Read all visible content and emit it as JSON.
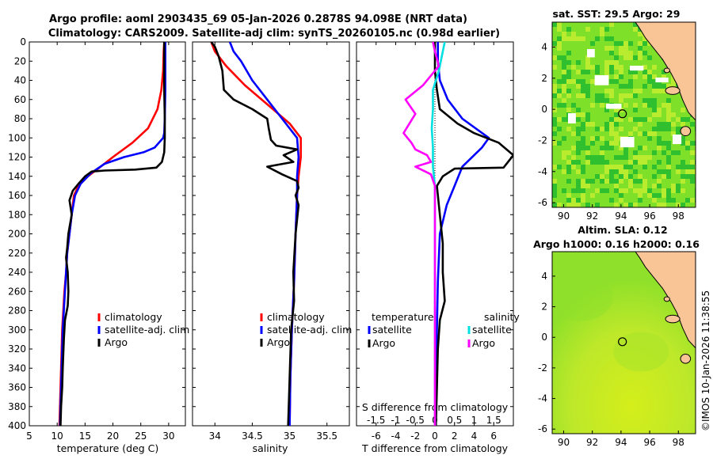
{
  "figure": {
    "title_line1": "Argo profile: aoml 2903435_69 05-Jan-2026 0.2878S 94.098E (NRT data)",
    "title_line2": "Climatology: CARS2009. Satellite-adj clim: synTS_20260105.nc (0.98d earlier)",
    "credit": "©IMOS 10-Jan-2026 11:38:55"
  },
  "colors": {
    "climatology": "#ff0000",
    "satellite": "#0000ff",
    "argo": "#000000",
    "t_diff_satellite": "#0000ff",
    "t_diff_argo": "#000000",
    "s_diff_satellite": "#00e0e0",
    "s_diff_argo": "#ff00ff",
    "land": "#f9c597",
    "sst_dark": "#2fbf2f",
    "sst_mid": "#7fe02a",
    "sst_light": "#b9ec2e",
    "sla_green": "#8fe02a",
    "sla_yellow": "#d4ee1a"
  },
  "chart_data": [
    {
      "id": "temperature",
      "type": "line",
      "xlabel": "temperature (deg C)",
      "xlim": [
        5,
        33
      ],
      "xticks": [
        5,
        10,
        15,
        20,
        25,
        30
      ],
      "ylim": [
        0,
        400
      ],
      "yticks": [
        0,
        20,
        40,
        60,
        80,
        100,
        120,
        140,
        160,
        180,
        200,
        220,
        240,
        260,
        280,
        300,
        320,
        340,
        360,
        380,
        400
      ],
      "legend": [
        "climatology",
        "satellite-adj. clim",
        "Argo"
      ],
      "series": [
        {
          "name": "climatology",
          "color_key": "climatology",
          "points": [
            [
              29.2,
              0
            ],
            [
              29.1,
              10
            ],
            [
              29.0,
              30
            ],
            [
              28.7,
              50
            ],
            [
              28.0,
              70
            ],
            [
              26.3,
              90
            ],
            [
              23.5,
              105
            ],
            [
              20.0,
              120
            ],
            [
              17.8,
              130
            ],
            [
              15.5,
              140
            ],
            [
              13.8,
              150
            ],
            [
              13.0,
              160
            ],
            [
              12.6,
              180
            ],
            [
              12.2,
              200
            ],
            [
              11.8,
              220
            ],
            [
              11.6,
              240
            ],
            [
              11.3,
              260
            ],
            [
              11.1,
              280
            ],
            [
              10.9,
              300
            ],
            [
              10.8,
              320
            ],
            [
              10.7,
              340
            ],
            [
              10.6,
              360
            ],
            [
              10.5,
              380
            ],
            [
              10.4,
              400
            ]
          ]
        },
        {
          "name": "satellite-adj. clim",
          "color_key": "satellite",
          "points": [
            [
              29.4,
              0
            ],
            [
              29.4,
              20
            ],
            [
              29.4,
              50
            ],
            [
              29.3,
              80
            ],
            [
              29.2,
              95
            ],
            [
              29.0,
              100
            ],
            [
              27.5,
              110
            ],
            [
              25.5,
              115
            ],
            [
              22.0,
              120
            ],
            [
              18.5,
              127
            ],
            [
              16.0,
              137
            ],
            [
              14.2,
              148
            ],
            [
              13.2,
              160
            ],
            [
              12.6,
              180
            ],
            [
              12.2,
              200
            ],
            [
              11.8,
              220
            ],
            [
              11.6,
              240
            ],
            [
              11.4,
              260
            ],
            [
              11.2,
              280
            ],
            [
              11.0,
              300
            ],
            [
              10.9,
              320
            ],
            [
              10.8,
              340
            ],
            [
              10.7,
              360
            ],
            [
              10.6,
              380
            ],
            [
              10.5,
              400
            ]
          ]
        },
        {
          "name": "Argo",
          "color_key": "argo",
          "points": [
            [
              29.2,
              0
            ],
            [
              29.2,
              20
            ],
            [
              29.2,
              50
            ],
            [
              29.3,
              80
            ],
            [
              29.3,
              100
            ],
            [
              29.2,
              115
            ],
            [
              28.8,
              125
            ],
            [
              27.8,
              131
            ],
            [
              24.0,
              133
            ],
            [
              18.5,
              134
            ],
            [
              16.2,
              135
            ],
            [
              15.0,
              140
            ],
            [
              13.8,
              148
            ],
            [
              12.8,
              155
            ],
            [
              12.2,
              165
            ],
            [
              12.6,
              180
            ],
            [
              12.0,
              200
            ],
            [
              11.8,
              215
            ],
            [
              11.6,
              225
            ],
            [
              11.9,
              240
            ],
            [
              12.0,
              260
            ],
            [
              11.9,
              275
            ],
            [
              11.4,
              290
            ],
            [
              11.2,
              310
            ],
            [
              11.0,
              340
            ],
            [
              10.9,
              360
            ],
            [
              10.7,
              380
            ],
            [
              10.6,
              400
            ]
          ]
        }
      ]
    },
    {
      "id": "salinity",
      "type": "line",
      "xlabel": "salinity",
      "xlim": [
        33.7,
        35.8
      ],
      "xticks": [
        34,
        34.5,
        35,
        35.5
      ],
      "xticklabels": [
        "34",
        "34.5",
        "35",
        "35.5"
      ],
      "ylim": [
        0,
        400
      ],
      "legend": [
        "climatology",
        "satellite-adj. clim",
        "Argo"
      ],
      "series": [
        {
          "name": "climatology",
          "color_key": "climatology",
          "points": [
            [
              33.95,
              0
            ],
            [
              34.0,
              10
            ],
            [
              34.15,
              25
            ],
            [
              34.4,
              45
            ],
            [
              34.7,
              65
            ],
            [
              35.0,
              85
            ],
            [
              35.15,
              100
            ],
            [
              35.15,
              120
            ],
            [
              35.12,
              140
            ],
            [
              35.1,
              160
            ],
            [
              35.08,
              200
            ],
            [
              35.06,
              250
            ],
            [
              35.03,
              300
            ],
            [
              35.01,
              350
            ],
            [
              35.0,
              400
            ]
          ]
        },
        {
          "name": "satellite-adj. clim",
          "color_key": "satellite",
          "points": [
            [
              34.2,
              0
            ],
            [
              34.25,
              10
            ],
            [
              34.35,
              20
            ],
            [
              34.5,
              40
            ],
            [
              34.7,
              60
            ],
            [
              34.9,
              80
            ],
            [
              35.1,
              100
            ],
            [
              35.12,
              120
            ],
            [
              35.1,
              140
            ],
            [
              35.1,
              160
            ],
            [
              35.08,
              200
            ],
            [
              35.06,
              250
            ],
            [
              35.03,
              300
            ],
            [
              35.01,
              350
            ],
            [
              35.0,
              400
            ]
          ]
        },
        {
          "name": "Argo",
          "color_key": "argo",
          "points": [
            [
              33.95,
              0
            ],
            [
              34.0,
              5
            ],
            [
              34.05,
              15
            ],
            [
              34.1,
              30
            ],
            [
              34.12,
              50
            ],
            [
              34.25,
              60
            ],
            [
              34.5,
              70
            ],
            [
              34.7,
              80
            ],
            [
              34.72,
              90
            ],
            [
              34.75,
              102
            ],
            [
              34.82,
              108
            ],
            [
              35.1,
              112
            ],
            [
              34.92,
              118
            ],
            [
              35.05,
              125
            ],
            [
              34.7,
              130
            ],
            [
              34.9,
              138
            ],
            [
              35.1,
              145
            ],
            [
              35.12,
              152
            ],
            [
              35.08,
              160
            ],
            [
              35.12,
              170
            ],
            [
              35.08,
              200
            ],
            [
              35.05,
              240
            ],
            [
              35.06,
              270
            ],
            [
              35.02,
              300
            ],
            [
              35.0,
              350
            ],
            [
              34.98,
              400
            ]
          ]
        }
      ]
    },
    {
      "id": "differences",
      "type": "line",
      "xlabel": "T difference from climatology",
      "xlim": [
        -8,
        8
      ],
      "xticks": [
        -6,
        -4,
        -2,
        0,
        2,
        4,
        6
      ],
      "top_label": "S difference from climatology",
      "top_xlim": [
        -2,
        2
      ],
      "top_ticks": [
        -1.5,
        -1,
        -0.5,
        0,
        0.5,
        1,
        1.5
      ],
      "top_ticklabels": [
        "-1.5",
        "-1",
        "-0.5",
        "0",
        "0.5",
        "1",
        "1.5"
      ],
      "ylim": [
        0,
        400
      ],
      "legend_titles": [
        "temperature",
        "salinity"
      ],
      "legend_left": [
        "satellite",
        "Argo"
      ],
      "legend_right": [
        "satellite",
        "Argo"
      ],
      "series": [
        {
          "name": "T satellite",
          "axis": "T",
          "color_key": "t_diff_satellite",
          "points": [
            [
              0.3,
              0
            ],
            [
              0.3,
              20
            ],
            [
              0.5,
              40
            ],
            [
              1.3,
              60
            ],
            [
              2.8,
              80
            ],
            [
              5.5,
              100
            ],
            [
              4.8,
              110
            ],
            [
              2.8,
              130
            ],
            [
              2.0,
              150
            ],
            [
              1.2,
              170
            ],
            [
              0.5,
              200
            ],
            [
              0.3,
              250
            ],
            [
              0.2,
              300
            ],
            [
              0.1,
              350
            ],
            [
              0.1,
              400
            ]
          ]
        },
        {
          "name": "T Argo",
          "axis": "T",
          "color_key": "t_diff_argo",
          "points": [
            [
              0.0,
              0
            ],
            [
              0.0,
              30
            ],
            [
              0.2,
              50
            ],
            [
              0.5,
              70
            ],
            [
              2.3,
              85
            ],
            [
              4.0,
              95
            ],
            [
              6.5,
              105
            ],
            [
              8.0,
              118
            ],
            [
              7.0,
              131
            ],
            [
              2.0,
              132
            ],
            [
              0.8,
              140
            ],
            [
              0.2,
              150
            ],
            [
              0.5,
              180
            ],
            [
              0.8,
              210
            ],
            [
              0.8,
              240
            ],
            [
              1.0,
              270
            ],
            [
              0.5,
              290
            ],
            [
              0.3,
              320
            ],
            [
              0.2,
              360
            ],
            [
              0.1,
              400
            ]
          ]
        },
        {
          "name": "S satellite",
          "axis": "S",
          "color_key": "s_diff_satellite",
          "points": [
            [
              0.25,
              0
            ],
            [
              0.2,
              10
            ],
            [
              0.1,
              30
            ],
            [
              -0.05,
              50
            ],
            [
              -0.05,
              70
            ],
            [
              -0.08,
              90
            ],
            [
              -0.05,
              110
            ],
            [
              -0.05,
              130
            ],
            [
              0.0,
              150
            ],
            [
              0.0,
              200
            ],
            [
              0.0,
              300
            ],
            [
              0.0,
              400
            ]
          ]
        },
        {
          "name": "S Argo",
          "axis": "S",
          "color_key": "s_diff_argo",
          "points": [
            [
              -0.05,
              0
            ],
            [
              0.0,
              10
            ],
            [
              0.1,
              25
            ],
            [
              -0.3,
              45
            ],
            [
              -0.75,
              60
            ],
            [
              -0.5,
              75
            ],
            [
              -0.8,
              95
            ],
            [
              -0.6,
              105
            ],
            [
              -0.5,
              112
            ],
            [
              -0.2,
              118
            ],
            [
              -0.1,
              125
            ],
            [
              -0.5,
              130
            ],
            [
              -0.1,
              138
            ],
            [
              0.0,
              150
            ],
            [
              0.0,
              200
            ],
            [
              0.0,
              300
            ],
            [
              0.0,
              400
            ]
          ]
        }
      ]
    },
    {
      "id": "sst_map",
      "type": "heatmap",
      "title": "sat. SST: 29.5 Argo: 29",
      "lon_range": [
        89.2,
        99.2
      ],
      "lat_range": [
        -6.3,
        5.6
      ],
      "xticks": [
        90,
        92,
        94,
        96,
        98
      ],
      "yticks": [
        4,
        2,
        0,
        -2,
        -4,
        -6
      ],
      "marker": {
        "lon": 94.098,
        "lat": -0.2878
      }
    },
    {
      "id": "sla_map",
      "type": "heatmap",
      "title_line1": "Altim. SLA: 0.12",
      "title_line2": "Argo h1000: 0.16 h2000: 0.16",
      "lon_range": [
        89.2,
        99.2
      ],
      "lat_range": [
        -6.3,
        5.6
      ],
      "xticks": [
        90,
        92,
        94,
        96,
        98
      ],
      "yticks": [
        4,
        2,
        0,
        -2,
        -4,
        -6
      ],
      "marker": {
        "lon": 94.098,
        "lat": -0.2878
      }
    }
  ]
}
